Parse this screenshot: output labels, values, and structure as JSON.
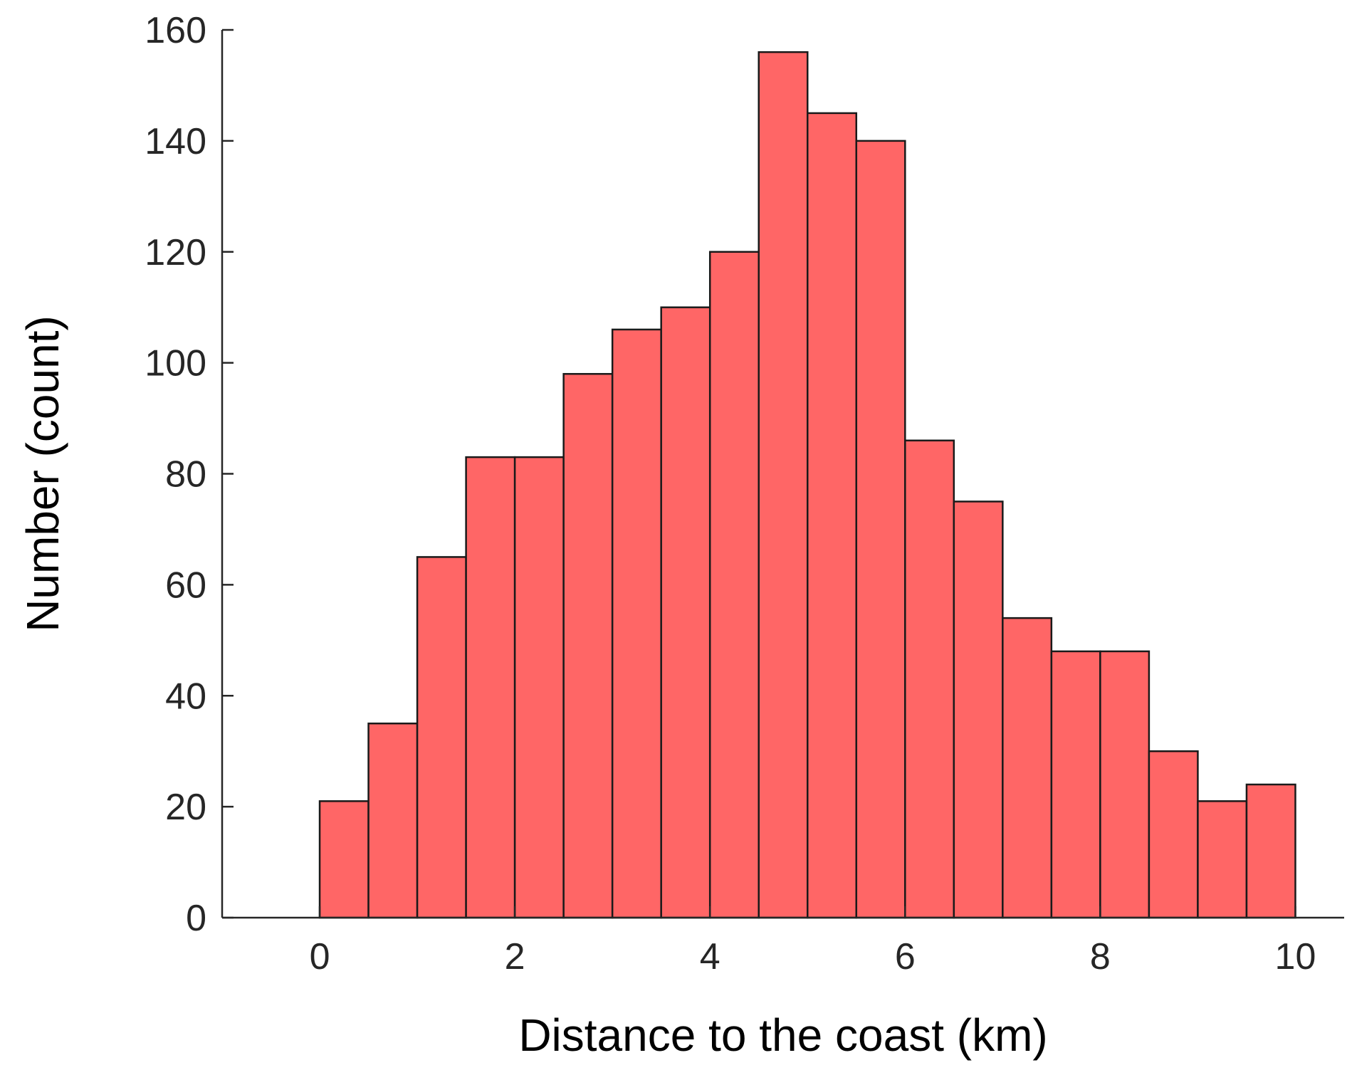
{
  "chart_data": {
    "type": "bar",
    "subtype": "histogram",
    "title": "",
    "xlabel": "Distance to the coast (km)",
    "ylabel": "Number (count)",
    "bin_edges": [
      0,
      0.5,
      1,
      1.5,
      2,
      2.5,
      3,
      3.5,
      4,
      4.5,
      5,
      5.5,
      6,
      6.5,
      7,
      7.5,
      8,
      8.5,
      9,
      9.5,
      10
    ],
    "values": [
      21,
      35,
      65,
      83,
      83,
      98,
      106,
      110,
      120,
      156,
      145,
      140,
      86,
      75,
      54,
      48,
      48,
      30,
      21,
      24
    ],
    "xlim": [
      -1,
      10.5
    ],
    "ylim": [
      0,
      160
    ],
    "xticks": [
      0,
      2,
      4,
      6,
      8,
      10
    ],
    "xtick_labels": [
      "0",
      "2",
      "4",
      "6",
      "8",
      "10"
    ],
    "yticks": [
      0,
      20,
      40,
      60,
      80,
      100,
      120,
      140,
      160
    ],
    "ytick_labels": [
      "0",
      "20",
      "40",
      "60",
      "80",
      "100",
      "120",
      "140",
      "160"
    ],
    "bar_color": "#ff6666",
    "edge_color": "#1a1a1a",
    "grid": false,
    "legend": false
  }
}
